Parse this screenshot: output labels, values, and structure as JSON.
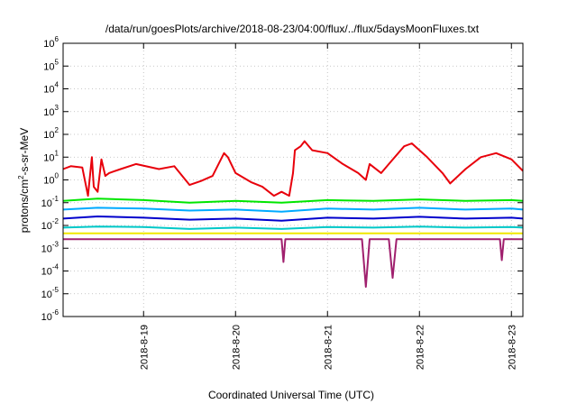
{
  "chart_data": {
    "type": "line",
    "title": "/data/run/goesPlots/archive/2018-08-23/04:00/flux/../flux/5daysMoonFluxes.txt",
    "xlabel": "Coordinated Universal Time (UTC)",
    "ylabel": {
      "base": "protons/cm",
      "sup": "2",
      "rest": "-s-sr-MeV"
    },
    "yscale": "log",
    "ylim": [
      1e-06,
      1000000.0
    ],
    "xlim": [
      "2018-08-18T03:00",
      "2018-08-23T03:00"
    ],
    "grid": true,
    "legend": "none",
    "y_ticks": [
      {
        "value": 1e-06,
        "base": "10",
        "exp": "-6"
      },
      {
        "value": 1e-05,
        "base": "10",
        "exp": "-5"
      },
      {
        "value": 0.0001,
        "base": "10",
        "exp": "-4"
      },
      {
        "value": 0.001,
        "base": "10",
        "exp": "-3"
      },
      {
        "value": 0.01,
        "base": "10",
        "exp": "-2"
      },
      {
        "value": 0.1,
        "base": "10",
        "exp": "-1"
      },
      {
        "value": 1,
        "base": "10",
        "exp": "0"
      },
      {
        "value": 10,
        "base": "10",
        "exp": "1"
      },
      {
        "value": 100,
        "base": "10",
        "exp": "2"
      },
      {
        "value": 1000,
        "base": "10",
        "exp": "3"
      },
      {
        "value": 10000,
        "base": "10",
        "exp": "4"
      },
      {
        "value": 100000,
        "base": "10",
        "exp": "5"
      },
      {
        "value": 1000000,
        "base": "10",
        "exp": "6"
      }
    ],
    "x_ticks": [
      {
        "value": "2018-08-19T00:00",
        "label": "2018-8-19"
      },
      {
        "value": "2018-08-20T00:00",
        "label": "2018-8-20"
      },
      {
        "value": "2018-08-21T00:00",
        "label": "2018-8-21"
      },
      {
        "value": "2018-08-22T00:00",
        "label": "2018-8-22"
      },
      {
        "value": "2018-08-23T00:00",
        "label": "2018-8-23"
      }
    ],
    "series": [
      {
        "color": "#e8000b",
        "x": [
          "2018-08-18T03:00",
          "2018-08-18T05:00",
          "2018-08-18T08:00",
          "2018-08-18T09:30",
          "2018-08-18T10:30",
          "2018-08-18T11:00",
          "2018-08-18T12:00",
          "2018-08-18T13:00",
          "2018-08-18T14:00",
          "2018-08-18T15:00",
          "2018-08-18T18:00",
          "2018-08-18T22:00",
          "2018-08-19T04:00",
          "2018-08-19T08:00",
          "2018-08-19T12:00",
          "2018-08-19T15:00",
          "2018-08-19T18:00",
          "2018-08-19T21:00",
          "2018-08-19T22:00",
          "2018-08-20T00:00",
          "2018-08-20T04:00",
          "2018-08-20T07:00",
          "2018-08-20T10:00",
          "2018-08-20T12:00",
          "2018-08-20T14:00",
          "2018-08-20T15:00",
          "2018-08-20T15:30",
          "2018-08-20T17:00",
          "2018-08-20T18:00",
          "2018-08-20T20:00",
          "2018-08-21T00:00",
          "2018-08-21T04:00",
          "2018-08-21T08:00",
          "2018-08-21T10:00",
          "2018-08-21T11:00",
          "2018-08-21T14:00",
          "2018-08-21T16:00",
          "2018-08-21T20:00",
          "2018-08-21T22:00",
          "2018-08-22T02:00",
          "2018-08-22T06:00",
          "2018-08-22T08:00",
          "2018-08-22T12:00",
          "2018-08-22T16:00",
          "2018-08-22T20:00",
          "2018-08-23T00:00",
          "2018-08-23T03:00"
        ],
        "values": [
          3,
          4,
          3.5,
          0.2,
          10,
          0.5,
          0.3,
          8,
          1.5,
          2,
          3,
          5,
          3,
          4,
          0.6,
          0.9,
          1.5,
          15,
          10,
          2,
          0.8,
          0.5,
          0.2,
          0.3,
          0.2,
          2,
          20,
          30,
          50,
          20,
          15,
          5,
          2,
          1,
          5,
          2,
          5,
          30,
          40,
          10,
          2,
          0.7,
          3,
          10,
          15,
          8,
          2.5
        ]
      },
      {
        "color": "#00e600",
        "x": [
          "2018-08-18T03:00",
          "2018-08-18T12:00",
          "2018-08-19T00:00",
          "2018-08-19T12:00",
          "2018-08-20T00:00",
          "2018-08-20T12:00",
          "2018-08-21T00:00",
          "2018-08-21T12:00",
          "2018-08-22T00:00",
          "2018-08-22T12:00",
          "2018-08-23T00:00",
          "2018-08-23T03:00"
        ],
        "values": [
          0.12,
          0.15,
          0.13,
          0.1,
          0.12,
          0.1,
          0.13,
          0.12,
          0.14,
          0.12,
          0.13,
          0.12
        ]
      },
      {
        "color": "#00aaff",
        "x": [
          "2018-08-18T03:00",
          "2018-08-18T12:00",
          "2018-08-19T00:00",
          "2018-08-19T12:00",
          "2018-08-20T00:00",
          "2018-08-20T12:00",
          "2018-08-21T00:00",
          "2018-08-21T12:00",
          "2018-08-22T00:00",
          "2018-08-22T12:00",
          "2018-08-23T00:00",
          "2018-08-23T03:00"
        ],
        "values": [
          0.05,
          0.06,
          0.055,
          0.045,
          0.05,
          0.04,
          0.055,
          0.05,
          0.06,
          0.05,
          0.055,
          0.05
        ]
      },
      {
        "color": "#0000cc",
        "x": [
          "2018-08-18T03:00",
          "2018-08-18T12:00",
          "2018-08-19T00:00",
          "2018-08-19T12:00",
          "2018-08-20T00:00",
          "2018-08-20T12:00",
          "2018-08-21T00:00",
          "2018-08-21T12:00",
          "2018-08-22T00:00",
          "2018-08-22T12:00",
          "2018-08-23T00:00",
          "2018-08-23T03:00"
        ],
        "values": [
          0.02,
          0.025,
          0.022,
          0.018,
          0.02,
          0.016,
          0.022,
          0.02,
          0.024,
          0.02,
          0.022,
          0.02
        ]
      },
      {
        "color": "#00c8c8",
        "x": [
          "2018-08-18T03:00",
          "2018-08-18T12:00",
          "2018-08-19T00:00",
          "2018-08-19T12:00",
          "2018-08-20T00:00",
          "2018-08-20T12:00",
          "2018-08-21T00:00",
          "2018-08-21T12:00",
          "2018-08-22T00:00",
          "2018-08-22T12:00",
          "2018-08-23T00:00",
          "2018-08-23T03:00"
        ],
        "values": [
          0.008,
          0.009,
          0.0085,
          0.007,
          0.008,
          0.007,
          0.0085,
          0.008,
          0.009,
          0.008,
          0.0085,
          0.008
        ]
      },
      {
        "color": "#f0e800",
        "x": [
          "2018-08-18T03:00",
          "2018-08-18T12:00",
          "2018-08-19T00:00",
          "2018-08-19T12:00",
          "2018-08-20T00:00",
          "2018-08-20T12:00",
          "2018-08-21T00:00",
          "2018-08-21T12:00",
          "2018-08-22T00:00",
          "2018-08-22T12:00",
          "2018-08-23T00:00",
          "2018-08-23T03:00"
        ],
        "values": [
          0.0045,
          0.0045,
          0.0045,
          0.0045,
          0.0045,
          0.0045,
          0.0045,
          0.0045,
          0.0045,
          0.0045,
          0.0045,
          0.0045
        ]
      },
      {
        "color": "#a0206e",
        "x": [
          "2018-08-18T03:00",
          "2018-08-19T00:00",
          "2018-08-20T00:00",
          "2018-08-20T12:00",
          "2018-08-20T12:30",
          "2018-08-20T13:00",
          "2018-08-21T00:00",
          "2018-08-21T09:00",
          "2018-08-21T10:00",
          "2018-08-21T11:00",
          "2018-08-21T12:00",
          "2018-08-21T16:00",
          "2018-08-21T17:00",
          "2018-08-21T18:00",
          "2018-08-22T00:00",
          "2018-08-22T21:00",
          "2018-08-22T21:30",
          "2018-08-22T22:00",
          "2018-08-23T03:00"
        ],
        "values": [
          0.0025,
          0.0025,
          0.0025,
          0.0025,
          0.00025,
          0.0025,
          0.0025,
          0.0025,
          2e-05,
          0.0025,
          0.0025,
          0.0025,
          5e-05,
          0.0025,
          0.0025,
          0.0025,
          0.0003,
          0.0025,
          0.0025
        ]
      }
    ]
  }
}
